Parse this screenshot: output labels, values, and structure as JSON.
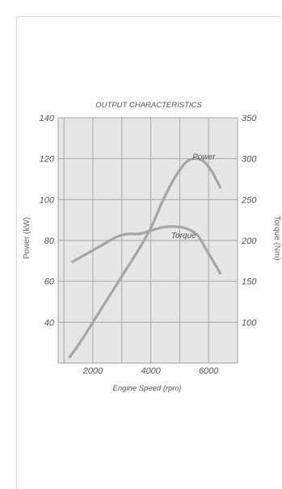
{
  "chart_data": {
    "type": "line",
    "title": "OUTPUT CHARACTERISTICS",
    "xlabel": "Engine Speed (rpm)",
    "ylabel_left": "Power (kW)",
    "ylabel_right": "Torque (Nm)",
    "xlim": [
      800,
      7000
    ],
    "ylim_left": [
      20,
      140
    ],
    "ylim_right": [
      50,
      350
    ],
    "x_ticks": [
      2000,
      4000,
      6000
    ],
    "y_ticks_left": [
      40,
      60,
      80,
      100,
      120,
      140
    ],
    "y_ticks_right": [
      100,
      150,
      200,
      250,
      300,
      350
    ],
    "grid": true,
    "series": [
      {
        "name": "Power",
        "axis": "left",
        "x": [
          1200,
          1600,
          2000,
          2400,
          2800,
          3200,
          3600,
          4000,
          4400,
          4800,
          5200,
          5500,
          5800,
          6100,
          6400
        ],
        "values": [
          23,
          31,
          40,
          49,
          58,
          67,
          76,
          86,
          99,
          110,
          118,
          120,
          119,
          114,
          106
        ]
      },
      {
        "name": "Torque",
        "axis": "right",
        "x": [
          1300,
          1800,
          2300,
          2800,
          3200,
          3600,
          4000,
          4400,
          4800,
          5200,
          5600,
          5900,
          6200,
          6400
        ],
        "values": [
          174,
          184,
          194,
          204,
          208,
          208,
          212,
          216,
          217,
          215,
          207,
          190,
          172,
          160
        ]
      }
    ],
    "colors": {
      "plot_bg": "#e6e6e6",
      "grid": "#a2a2a2",
      "line": "#a5a5a5",
      "text": "#555555"
    }
  }
}
